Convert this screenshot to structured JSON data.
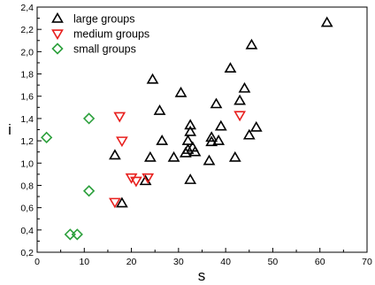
{
  "chart_data": {
    "type": "scatter",
    "title": "",
    "xlabel": "s",
    "ylabel": "i",
    "xlim": [
      0,
      70
    ],
    "ylim": [
      0.2,
      2.4
    ],
    "x_ticks": [
      "0",
      "10",
      "20",
      "30",
      "40",
      "50",
      "60",
      "70"
    ],
    "y_ticks": [
      "0,2",
      "0,4",
      "0,6",
      "0,8",
      "1,0",
      "1,2",
      "1,4",
      "1,6",
      "1,8",
      "2,0",
      "2,2",
      "2,4"
    ],
    "grid": false,
    "legend_position": "top-left",
    "series": [
      {
        "name": "large groups",
        "marker": "triangle-up",
        "color": "#000000",
        "points": [
          {
            "x": 16.5,
            "y": 1.07
          },
          {
            "x": 18.0,
            "y": 0.64
          },
          {
            "x": 23.0,
            "y": 0.84
          },
          {
            "x": 24.0,
            "y": 1.05
          },
          {
            "x": 24.5,
            "y": 1.75
          },
          {
            "x": 26.0,
            "y": 1.47
          },
          {
            "x": 26.5,
            "y": 1.2
          },
          {
            "x": 29.0,
            "y": 1.05
          },
          {
            "x": 30.5,
            "y": 1.63
          },
          {
            "x": 31.5,
            "y": 1.09
          },
          {
            "x": 32.0,
            "y": 1.12
          },
          {
            "x": 32.0,
            "y": 1.2
          },
          {
            "x": 32.5,
            "y": 1.28
          },
          {
            "x": 32.5,
            "y": 1.34
          },
          {
            "x": 32.5,
            "y": 0.85
          },
          {
            "x": 33.0,
            "y": 1.14
          },
          {
            "x": 33.5,
            "y": 1.1
          },
          {
            "x": 36.5,
            "y": 1.02
          },
          {
            "x": 37.0,
            "y": 1.19
          },
          {
            "x": 37.0,
            "y": 1.23
          },
          {
            "x": 38.0,
            "y": 1.53
          },
          {
            "x": 38.5,
            "y": 1.2
          },
          {
            "x": 39.0,
            "y": 1.33
          },
          {
            "x": 41.0,
            "y": 1.85
          },
          {
            "x": 42.0,
            "y": 1.05
          },
          {
            "x": 43.0,
            "y": 1.56
          },
          {
            "x": 44.0,
            "y": 1.67
          },
          {
            "x": 45.0,
            "y": 1.25
          },
          {
            "x": 45.5,
            "y": 2.06
          },
          {
            "x": 46.5,
            "y": 1.32
          },
          {
            "x": 61.5,
            "y": 2.26
          }
        ]
      },
      {
        "name": "medium groups",
        "marker": "triangle-down",
        "color": "#e8201e",
        "points": [
          {
            "x": 16.5,
            "y": 0.65
          },
          {
            "x": 17.5,
            "y": 1.42
          },
          {
            "x": 18.0,
            "y": 1.2
          },
          {
            "x": 20.0,
            "y": 0.87
          },
          {
            "x": 21.0,
            "y": 0.84
          },
          {
            "x": 23.5,
            "y": 0.87
          },
          {
            "x": 43.0,
            "y": 1.43
          }
        ]
      },
      {
        "name": "small groups",
        "marker": "diamond",
        "color": "#2ca03c",
        "points": [
          {
            "x": 2.0,
            "y": 1.23
          },
          {
            "x": 7.0,
            "y": 0.36
          },
          {
            "x": 8.5,
            "y": 0.36
          },
          {
            "x": 11.0,
            "y": 1.4
          },
          {
            "x": 11.0,
            "y": 0.75
          }
        ]
      }
    ]
  }
}
